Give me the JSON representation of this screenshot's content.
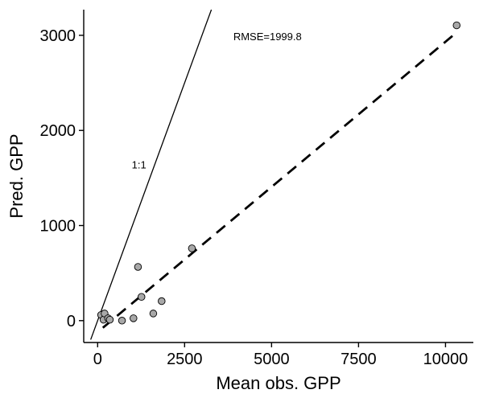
{
  "chart_data": {
    "type": "scatter",
    "title": "",
    "xlabel": "Mean obs. GPP",
    "ylabel": "Pred. GPP",
    "xlim": [
      -400,
      10800
    ],
    "ylim": [
      -230,
      3270
    ],
    "x_ticks": [
      0,
      2500,
      5000,
      7500,
      10000
    ],
    "y_ticks": [
      0,
      1000,
      2000,
      3000
    ],
    "x_tick_labels": [
      "0",
      "2500",
      "5000",
      "7500",
      "10000"
    ],
    "y_tick_labels": [
      "0",
      "1000",
      "2000",
      "3000"
    ],
    "grid": false,
    "points": [
      {
        "x": 100,
        "y": 60
      },
      {
        "x": 170,
        "y": 10
      },
      {
        "x": 200,
        "y": 75
      },
      {
        "x": 300,
        "y": 25
      },
      {
        "x": 350,
        "y": 10
      },
      {
        "x": 700,
        "y": 0
      },
      {
        "x": 1030,
        "y": 25
      },
      {
        "x": 1160,
        "y": 565
      },
      {
        "x": 1260,
        "y": 250
      },
      {
        "x": 1600,
        "y": 75
      },
      {
        "x": 1840,
        "y": 205
      },
      {
        "x": 2710,
        "y": 760
      },
      {
        "x": 10320,
        "y": 3105
      }
    ],
    "one_to_one_line": {
      "label": "1:1",
      "x_start": -200,
      "x_end": 3270
    },
    "fit_line": {
      "x1": 150,
      "y1": -75,
      "x2": 10350,
      "y2": 3040
    },
    "annotations": [
      {
        "text": "RMSE=1999.8",
        "x": 3900,
        "y": 2950
      },
      {
        "text": "1:1",
        "x": 980,
        "y": 1600
      }
    ],
    "colors": {
      "point_fill": "#a8a8a8",
      "point_stroke": "#000000",
      "line": "#000000"
    }
  }
}
